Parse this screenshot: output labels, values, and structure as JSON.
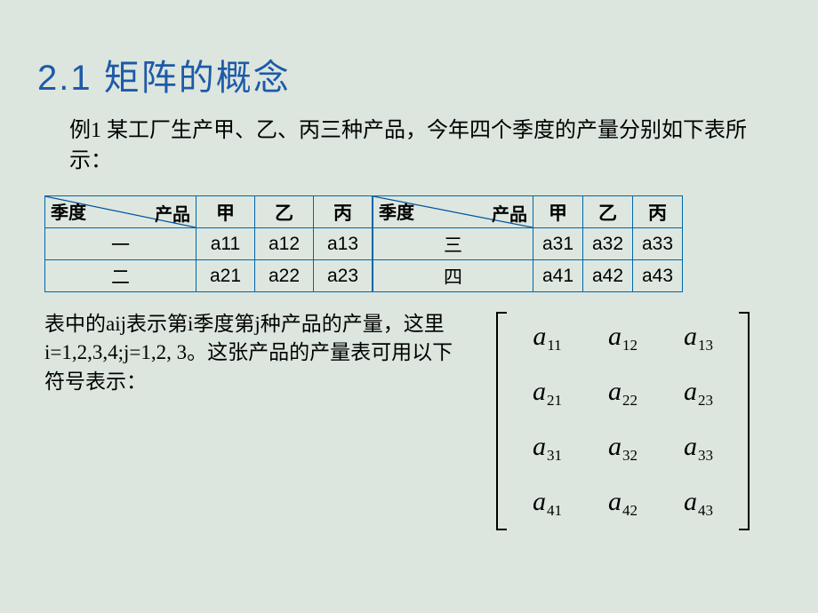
{
  "title": "2.1  矩阵的概念",
  "example_text": "例1  某工厂生产甲、乙、丙三种产品，今年四个季度的产量分别如下表所示：",
  "table": {
    "border_color": "#0066aa",
    "diag_line_color": "#0050a0",
    "header_left_label": "季度",
    "header_right_label": "产品",
    "col_labels": [
      "甲",
      "乙",
      "丙"
    ],
    "left_rows": [
      {
        "q": "一",
        "cells": [
          "a11",
          "a12",
          "a13"
        ]
      },
      {
        "q": "二",
        "cells": [
          "a21",
          "a22",
          "a23"
        ]
      }
    ],
    "right_rows": [
      {
        "q": "三",
        "cells": [
          "a31",
          "a32",
          "a33"
        ]
      },
      {
        "q": "四",
        "cells": [
          "a41",
          "a42",
          "a43"
        ]
      }
    ]
  },
  "explain_text": "表中的aij表示第i季度第j种产品的产量，这里i=1,2,3,4;j=1,2, 3。这张产品的产量表可用以下符号表示：",
  "matrix": {
    "rows": 4,
    "cols": 3,
    "entries": [
      [
        "11",
        "12",
        "13"
      ],
      [
        "21",
        "22",
        "23"
      ],
      [
        "31",
        "32",
        "33"
      ],
      [
        "41",
        "42",
        "43"
      ]
    ],
    "symbol": "a",
    "bracket_color": "#000000"
  },
  "colors": {
    "background": "#dce6de",
    "title_color": "#1e5aa8",
    "text_color": "#000000"
  }
}
